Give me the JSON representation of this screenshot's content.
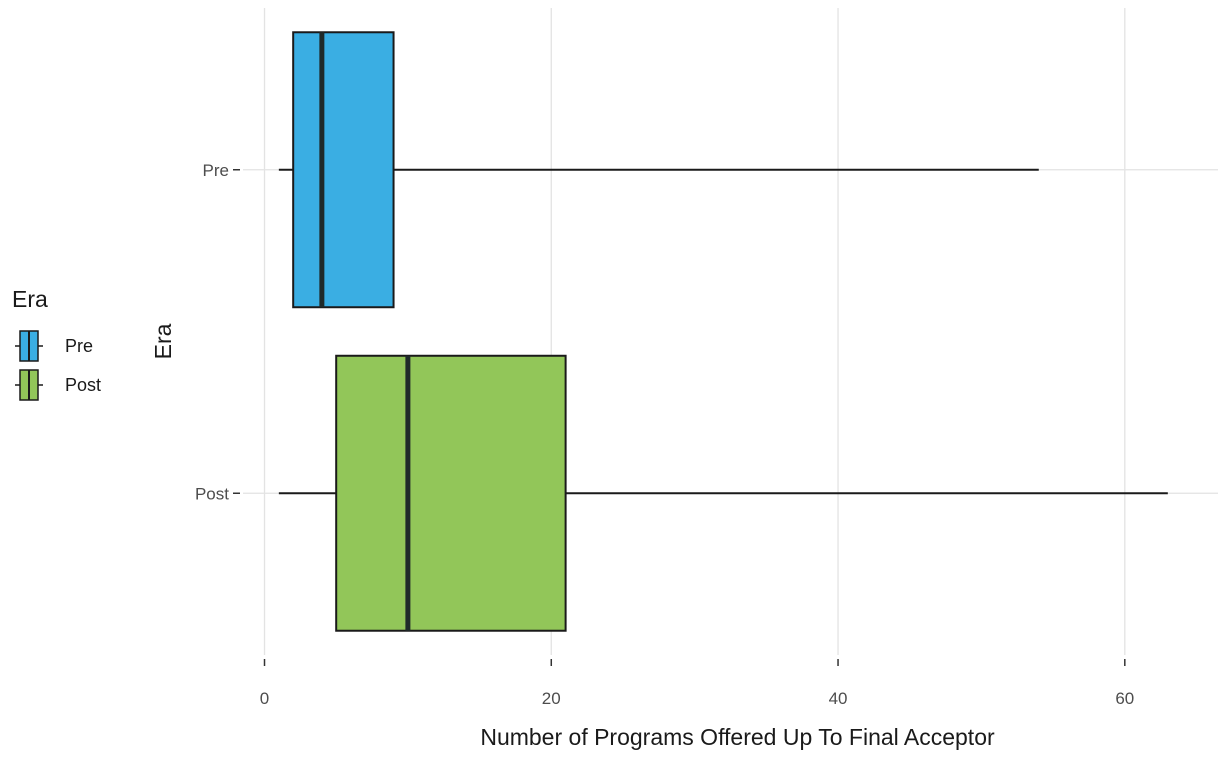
{
  "chart_data": {
    "type": "boxplot",
    "orientation": "horizontal",
    "title": "",
    "xlabel": "Number of Programs Offered Up To Final Acceptor",
    "ylabel": "Era",
    "xlim": [
      -1.5,
      66.5
    ],
    "x_ticks": [
      0,
      20,
      40,
      60
    ],
    "grid": "major gridlines on both axes",
    "categories": [
      "Pre",
      "Post"
    ],
    "series": [
      {
        "name": "Pre",
        "color": "#3aaee3",
        "min": 1,
        "q1": 2,
        "median": 4,
        "q3": 9,
        "max": 54
      },
      {
        "name": "Post",
        "color": "#92c659",
        "min": 1,
        "q1": 5,
        "median": 10,
        "q3": 21,
        "max": 63
      }
    ],
    "legend": {
      "title": "Era",
      "position": "left",
      "items": [
        {
          "label": "Pre",
          "color": "#3aaee3"
        },
        {
          "label": "Post",
          "color": "#92c659"
        }
      ]
    }
  }
}
